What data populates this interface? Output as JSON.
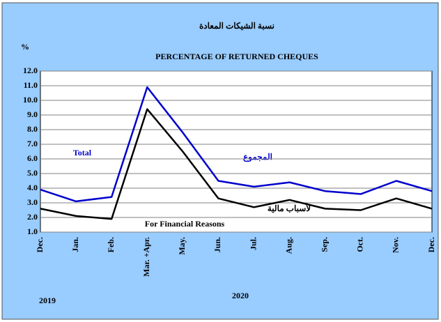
{
  "chart_data": {
    "type": "line",
    "title": "نسبة الشيكات المعادة",
    "y_unit": "%",
    "subtitle": "PERCENTAGE OF RETURNED CHEQUES",
    "categories": [
      "Dec.",
      "Jan.",
      "Feb.",
      "Mar. +Apr.",
      "May.",
      "Jun.",
      "Jul.",
      "Aug.",
      "Sep.",
      "Oct.",
      "Nov.",
      "Dec."
    ],
    "series": [
      {
        "name": "Total",
        "color": "#0000cc",
        "values": [
          3.9,
          3.1,
          3.4,
          10.9,
          7.8,
          4.5,
          4.1,
          4.4,
          3.8,
          3.6,
          4.5,
          3.8
        ]
      },
      {
        "name": "For Financial Reasons",
        "color": "#000000",
        "values": [
          2.6,
          2.1,
          1.9,
          9.4,
          6.5,
          3.3,
          2.7,
          3.2,
          2.6,
          2.5,
          3.3,
          2.6
        ]
      }
    ],
    "annotations": [
      "المجموع",
      "لأسباب مالية",
      "2019",
      "2020"
    ],
    "ylim": [
      1,
      12
    ],
    "yticks": [
      {
        "value": 1,
        "label": "1.0"
      },
      {
        "value": 2,
        "label": "2.0"
      },
      {
        "value": 3,
        "label": "3.0"
      },
      {
        "value": 4,
        "label": "4.0"
      },
      {
        "value": 5,
        "label": "5.0"
      },
      {
        "value": 6,
        "label": "6.0"
      },
      {
        "value": 7,
        "label": "7.0"
      },
      {
        "value": 8,
        "label": "8.0"
      },
      {
        "value": 9,
        "label": "9.0"
      },
      {
        "value": 10,
        "label": "10.0"
      },
      {
        "value": 11,
        "label": "11.0"
      },
      {
        "value": 12,
        "label": "12.0"
      }
    ],
    "grid": true
  }
}
